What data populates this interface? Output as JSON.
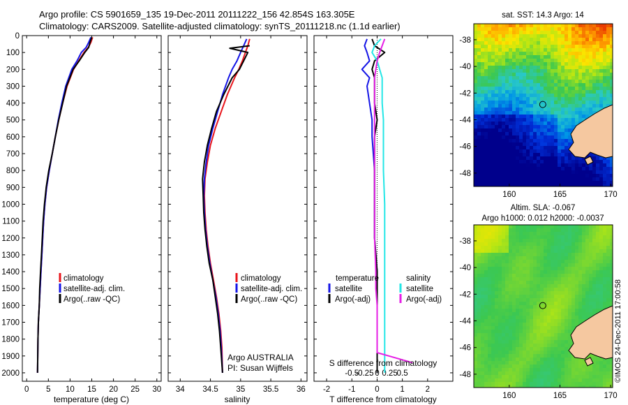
{
  "header": {
    "line1": "Argo profile: CS 5901659_135 19-Dec-2011 20111222_156 42.854S 163.305E",
    "line2": "Climatology: CARS2009. Satellite-adjusted climatology: synTS_20111218.nc (1.1d earlier)"
  },
  "credit": "©IMOS 24-Dec-2011 17:00:58",
  "colors": {
    "climatology": "#e8141b",
    "satellite": "#1414e6",
    "argo": "#000000",
    "salinity_sat": "#22e6e6",
    "salinity_argo": "#e61ee6",
    "land": "#f5c8a0"
  },
  "chart_data": [
    {
      "type": "line",
      "id": "temperature",
      "xlabel": "temperature (deg C)",
      "xlim": [
        -1,
        31
      ],
      "xticks": [
        0,
        5,
        10,
        15,
        20,
        25,
        30
      ],
      "ylim": [
        2050,
        0
      ],
      "yticks": [
        0,
        100,
        200,
        300,
        400,
        500,
        600,
        700,
        800,
        900,
        1000,
        1100,
        1200,
        1300,
        1400,
        1500,
        1600,
        1700,
        1800,
        1900,
        2000
      ],
      "legend": [
        "climatology",
        "satellite-adj. clim.",
        "Argo(..raw -QC)"
      ],
      "series": [
        {
          "name": "climatology",
          "color": "#e8141b",
          "x": [
            15.2,
            14.8,
            14.2,
            13.2,
            12.0,
            10.8,
            9.3,
            8.3,
            7.4,
            6.6,
            5.9,
            5.2,
            4.6,
            4.2,
            3.9,
            3.7,
            3.5,
            3.3,
            3.1,
            2.9,
            2.7,
            2.6,
            2.5
          ],
          "y": [
            10,
            40,
            70,
            100,
            150,
            200,
            300,
            400,
            500,
            600,
            700,
            800,
            900,
            1000,
            1100,
            1200,
            1300,
            1400,
            1500,
            1600,
            1700,
            1800,
            2000
          ]
        },
        {
          "name": "satellite-adj. clim.",
          "color": "#1414e6",
          "x": [
            14.8,
            14.3,
            13.7,
            12.6,
            11.6,
            10.4,
            9.0,
            8.1,
            7.3,
            6.6,
            5.9,
            5.2,
            4.6,
            4.2,
            3.9,
            3.7,
            3.5,
            3.3,
            3.1,
            2.9,
            2.7,
            2.6,
            2.5
          ],
          "y": [
            10,
            40,
            70,
            100,
            150,
            200,
            300,
            400,
            500,
            600,
            700,
            800,
            900,
            1000,
            1100,
            1200,
            1300,
            1400,
            1500,
            1600,
            1700,
            1800,
            2000
          ]
        },
        {
          "name": "Argo(..raw -QC)",
          "color": "#000000",
          "x": [
            15.0,
            14.6,
            14.3,
            13.4,
            12.1,
            10.7,
            9.2,
            8.3,
            7.4,
            6.6,
            5.9,
            5.1,
            4.5,
            4.1,
            3.8,
            3.6,
            3.4,
            3.2,
            3.0,
            2.9,
            2.7,
            2.6,
            2.5
          ],
          "y": [
            10,
            40,
            70,
            100,
            150,
            200,
            300,
            400,
            500,
            600,
            700,
            800,
            900,
            1000,
            1100,
            1200,
            1300,
            1400,
            1500,
            1600,
            1700,
            1800,
            2000
          ]
        }
      ]
    },
    {
      "type": "line",
      "id": "salinity",
      "xlabel": "salinity",
      "xlim": [
        33.8,
        36.1
      ],
      "xticks": [
        34,
        34.5,
        35,
        35.5,
        36
      ],
      "ylim": [
        2050,
        0
      ],
      "legend": [
        "climatology",
        "satellite-adj. clim.",
        "Argo(..raw -QC)"
      ],
      "annotation": [
        "Argo AUSTRALIA",
        "PI: Susan Wijffels"
      ],
      "series": [
        {
          "name": "climatology",
          "color": "#e8141b",
          "x": [
            35.15,
            35.12,
            35.08,
            35.03,
            34.97,
            34.9,
            34.78,
            34.68,
            34.58,
            34.5,
            34.45,
            34.41,
            34.4,
            34.41,
            34.43,
            34.46,
            34.5,
            34.55,
            34.6,
            34.64,
            34.67,
            34.69,
            34.7
          ],
          "y": [
            20,
            60,
            100,
            150,
            200,
            250,
            350,
            450,
            550,
            650,
            750,
            850,
            950,
            1050,
            1150,
            1250,
            1350,
            1450,
            1550,
            1650,
            1750,
            1850,
            2000
          ]
        },
        {
          "name": "satellite-adj. clim.",
          "color": "#1414e6",
          "x": [
            35.1,
            35.05,
            35.0,
            34.94,
            34.86,
            34.8,
            34.7,
            34.62,
            34.54,
            34.47,
            34.43,
            34.4,
            34.39,
            34.4,
            34.42,
            34.45,
            34.49,
            34.54,
            34.59,
            34.63,
            34.66,
            34.68,
            34.7
          ],
          "y": [
            20,
            60,
            100,
            150,
            200,
            250,
            350,
            450,
            550,
            650,
            750,
            850,
            950,
            1050,
            1150,
            1250,
            1350,
            1450,
            1550,
            1650,
            1750,
            1850,
            2000
          ]
        },
        {
          "name": "Argo(..raw -QC)",
          "color": "#000000",
          "x": [
            35.15,
            34.82,
            35.12,
            35.05,
            34.98,
            34.86,
            34.72,
            34.6,
            34.52,
            34.45,
            34.4,
            34.37,
            34.38,
            34.39,
            34.41,
            34.44,
            34.48,
            34.54,
            34.58,
            34.62,
            34.65,
            34.67,
            34.7
          ],
          "y": [
            60,
            75,
            100,
            150,
            200,
            250,
            350,
            450,
            550,
            650,
            750,
            850,
            950,
            1050,
            1150,
            1250,
            1350,
            1450,
            1550,
            1650,
            1750,
            1850,
            2000
          ]
        }
      ]
    },
    {
      "type": "line",
      "id": "difference",
      "xlabel": "T difference from climatology",
      "xlabel_top": "S difference from climatology",
      "xlim": [
        -2.5,
        3.0
      ],
      "xticks": [
        -2,
        -1,
        0,
        1,
        2
      ],
      "xticks_top": {
        "positions": [
          -1.0,
          -0.5,
          0,
          0.5,
          1.0
        ],
        "labels": [
          "-0.5",
          "-0.25",
          "0",
          "0.25",
          "0.5"
        ]
      },
      "ylim": [
        2050,
        0
      ],
      "legend_left": {
        "title": "temperature",
        "entries": [
          "satellite",
          "Argo(-adj)"
        ]
      },
      "legend_right": {
        "title": "salinity",
        "entries": [
          "satellite",
          "Argo(-adj)"
        ]
      },
      "series": [
        {
          "name": "temperature satellite",
          "color": "#1414e6",
          "x": [
            -0.4,
            -0.5,
            -0.4,
            -0.3,
            -0.6,
            -0.3,
            -0.4,
            -0.3,
            -0.2,
            -0.2,
            -0.1,
            -0.1,
            -0.1,
            0,
            0,
            0,
            0,
            0,
            0,
            0
          ],
          "y": [
            20,
            60,
            100,
            150,
            200,
            250,
            300,
            400,
            500,
            600,
            800,
            1000,
            1200,
            1400,
            1500,
            1600,
            1700,
            1800,
            1900,
            2000
          ]
        },
        {
          "name": "temperature Argo(-adj)",
          "color": "#000000",
          "x": [
            -0.2,
            -0.1,
            0.3,
            -0.1,
            -0.2,
            -0.1,
            -0.1,
            -0.1,
            0.0,
            -0.1,
            -0.1,
            -0.1,
            -0.1,
            0,
            0,
            0,
            0,
            0,
            0,
            0
          ],
          "y": [
            20,
            60,
            100,
            150,
            200,
            250,
            300,
            400,
            500,
            600,
            800,
            1000,
            1200,
            1400,
            1500,
            1600,
            1700,
            1800,
            1900,
            2000
          ]
        },
        {
          "name": "salinity satellite",
          "color": "#22e6e6",
          "x": [
            0.15,
            -0.1,
            -0.2,
            0.0,
            0.1,
            0.2,
            0.2,
            0.2,
            0.25,
            0.25,
            0.25,
            0.3,
            0.3,
            0.3,
            0.3,
            0.3,
            0.3,
            0.3,
            0.3,
            0.3
          ],
          "y": [
            20,
            60,
            100,
            150,
            200,
            250,
            300,
            400,
            500,
            600,
            800,
            1000,
            1200,
            1400,
            1500,
            1600,
            1700,
            1800,
            1900,
            2000
          ]
        },
        {
          "name": "salinity Argo(-adj)",
          "color": "#e61ee6",
          "x": [
            0.3,
            0.2,
            0.1,
            0.0,
            -0.05,
            -0.1,
            -0.1,
            -0.1,
            -0.1,
            -0.1,
            -0.1,
            -0.1,
            -0.1,
            -0.05,
            -0.05,
            0,
            0,
            0,
            0,
            1.4
          ],
          "y": [
            20,
            60,
            100,
            150,
            200,
            250,
            300,
            400,
            500,
            600,
            800,
            1000,
            1200,
            1400,
            1500,
            1600,
            1700,
            1800,
            1880,
            1940
          ]
        }
      ]
    },
    {
      "type": "heatmap",
      "id": "sst_map",
      "title": "sat. SST: 14.3 Argo: 14",
      "xlim": [
        156.5,
        170.2
      ],
      "ylim": [
        -49.0,
        -36.8
      ],
      "xticks": [
        160,
        165,
        170
      ],
      "yticks": [
        -38,
        -40,
        -42,
        -44,
        -46,
        -48
      ],
      "marker": {
        "lon": 163.305,
        "lat": -42.854
      }
    },
    {
      "type": "heatmap",
      "id": "sla_map",
      "title": [
        "Altim. SLA: -0.067",
        "Argo h1000: 0.012 h2000: -0.0037"
      ],
      "xlim": [
        156.5,
        170.2
      ],
      "ylim": [
        -49.0,
        -36.8
      ],
      "xticks": [
        160,
        165,
        170
      ],
      "yticks": [
        -38,
        -40,
        -42,
        -44,
        -46,
        -48
      ],
      "marker": {
        "lon": 163.305,
        "lat": -42.854
      }
    }
  ]
}
